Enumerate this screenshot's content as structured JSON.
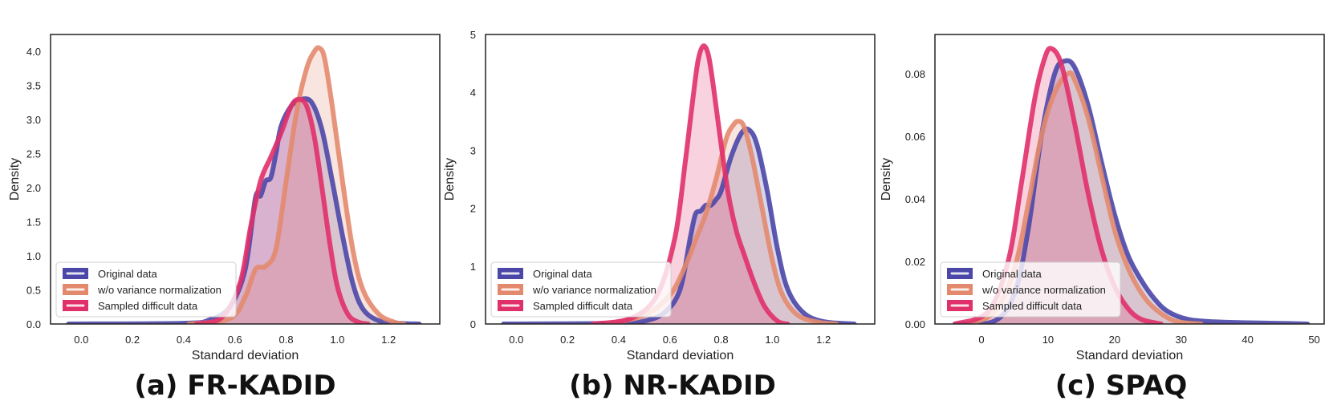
{
  "chart_data": [
    {
      "type": "area",
      "caption": "(a) FR-KADID",
      "xlabel": "Standard deviation",
      "ylabel": "Density",
      "xlim": [
        -0.12,
        1.4
      ],
      "ylim": [
        0,
        4.25
      ],
      "xticks": [
        0.0,
        0.2,
        0.4,
        0.6,
        0.8,
        1.0,
        1.2
      ],
      "xtick_labels": [
        "0.0",
        "0.2",
        "0.4",
        "0.6",
        "0.8",
        "1.0",
        "1.2"
      ],
      "yticks": [
        0.0,
        0.5,
        1.0,
        1.5,
        2.0,
        2.5,
        3.0,
        3.5,
        4.0
      ],
      "ytick_labels": [
        "0.0",
        "0.5",
        "1.0",
        "1.5",
        "2.0",
        "2.5",
        "3.0",
        "3.5",
        "4.0"
      ],
      "grid": false,
      "legend_position": "lower-left",
      "series": [
        {
          "name": "Original data",
          "color": "#4b47a8",
          "x": [
            -0.05,
            0.4,
            0.5,
            0.58,
            0.64,
            0.68,
            0.7,
            0.72,
            0.74,
            0.76,
            0.78,
            0.82,
            0.86,
            0.9,
            0.94,
            0.98,
            1.02,
            1.06,
            1.1,
            1.16,
            1.24,
            1.32
          ],
          "y": [
            0.0,
            0.01,
            0.06,
            0.25,
            0.8,
            1.85,
            1.88,
            2.1,
            2.15,
            2.5,
            2.9,
            3.2,
            3.3,
            3.25,
            2.85,
            2.1,
            1.3,
            0.6,
            0.22,
            0.05,
            0.01,
            0.0
          ]
        },
        {
          "name": "w/o variance normalization",
          "color": "#e38a6e",
          "x": [
            0.42,
            0.58,
            0.64,
            0.68,
            0.72,
            0.76,
            0.8,
            0.84,
            0.88,
            0.91,
            0.93,
            0.95,
            0.98,
            1.02,
            1.06,
            1.1,
            1.16,
            1.22,
            1.26
          ],
          "y": [
            0.0,
            0.08,
            0.4,
            0.8,
            0.85,
            1.1,
            2.1,
            3.1,
            3.75,
            4.0,
            4.05,
            3.9,
            3.2,
            2.1,
            1.1,
            0.5,
            0.15,
            0.03,
            0.0
          ]
        },
        {
          "name": "Sampled difficult data",
          "color": "#e0306a",
          "x": [
            0.45,
            0.55,
            0.62,
            0.66,
            0.7,
            0.74,
            0.78,
            0.82,
            0.85,
            0.88,
            0.91,
            0.94,
            0.97,
            1.0,
            1.04,
            1.08,
            1.12
          ],
          "y": [
            0.0,
            0.1,
            0.6,
            1.4,
            2.1,
            2.45,
            2.8,
            3.2,
            3.3,
            3.2,
            2.75,
            2.0,
            1.2,
            0.55,
            0.15,
            0.03,
            0.0
          ]
        }
      ]
    },
    {
      "type": "area",
      "caption": "(b) NR-KADID",
      "xlabel": "Standard deviation",
      "ylabel": "Density",
      "xlim": [
        -0.12,
        1.4
      ],
      "ylim": [
        0,
        5.0
      ],
      "xticks": [
        0.0,
        0.2,
        0.4,
        0.6,
        0.8,
        1.0,
        1.2
      ],
      "xtick_labels": [
        "0.0",
        "0.2",
        "0.4",
        "0.6",
        "0.8",
        "1.0",
        "1.2"
      ],
      "yticks": [
        0,
        1,
        2,
        3,
        4,
        5
      ],
      "ytick_labels": [
        "0",
        "1",
        "2",
        "3",
        "4",
        "5"
      ],
      "grid": false,
      "legend_position": "lower-left",
      "series": [
        {
          "name": "Original data",
          "color": "#4b47a8",
          "x": [
            -0.05,
            0.4,
            0.5,
            0.58,
            0.64,
            0.68,
            0.7,
            0.72,
            0.74,
            0.76,
            0.78,
            0.8,
            0.84,
            0.88,
            0.91,
            0.94,
            0.98,
            1.02,
            1.06,
            1.12,
            1.2,
            1.32
          ],
          "y": [
            0.0,
            0.01,
            0.05,
            0.2,
            0.6,
            1.5,
            1.9,
            1.95,
            2.05,
            2.05,
            2.15,
            2.3,
            2.9,
            3.3,
            3.35,
            3.1,
            2.3,
            1.3,
            0.6,
            0.2,
            0.04,
            0.0
          ]
        },
        {
          "name": "w/o variance normalization",
          "color": "#e38a6e",
          "x": [
            0.35,
            0.5,
            0.6,
            0.66,
            0.7,
            0.74,
            0.78,
            0.82,
            0.85,
            0.87,
            0.89,
            0.92,
            0.96,
            1.0,
            1.04,
            1.1,
            1.18,
            1.25
          ],
          "y": [
            0.0,
            0.15,
            0.5,
            1.0,
            1.45,
            1.9,
            2.5,
            3.2,
            3.45,
            3.5,
            3.4,
            2.9,
            2.0,
            1.1,
            0.5,
            0.15,
            0.03,
            0.0
          ]
        },
        {
          "name": "Sampled difficult data",
          "color": "#e0306a",
          "x": [
            0.3,
            0.45,
            0.55,
            0.62,
            0.66,
            0.69,
            0.71,
            0.73,
            0.75,
            0.77,
            0.8,
            0.83,
            0.86,
            0.89,
            0.93,
            0.97,
            1.02,
            1.06
          ],
          "y": [
            0.0,
            0.1,
            0.5,
            1.5,
            2.8,
            3.9,
            4.55,
            4.8,
            4.65,
            4.1,
            3.1,
            2.2,
            1.6,
            1.2,
            0.7,
            0.3,
            0.05,
            0.0
          ]
        }
      ]
    },
    {
      "type": "area",
      "caption": "(c) SPAQ",
      "xlabel": "Standard deviation",
      "ylabel": "Density",
      "xlim": [
        -7,
        51.5
      ],
      "ylim": [
        0,
        0.0925
      ],
      "xticks": [
        0,
        10,
        20,
        30,
        40,
        50
      ],
      "xtick_labels": [
        "0",
        "10",
        "20",
        "30",
        "40",
        "50"
      ],
      "yticks": [
        0.0,
        0.02,
        0.04,
        0.06,
        0.08
      ],
      "ytick_labels": [
        "0.00",
        "0.02",
        "0.04",
        "0.06",
        "0.08"
      ],
      "grid": false,
      "legend_position": "lower-left",
      "series": [
        {
          "name": "Original data",
          "color": "#4b47a8",
          "x": [
            -4,
            2,
            5,
            7,
            9,
            11,
            12.5,
            14,
            16,
            18,
            20,
            22,
            24,
            26,
            28,
            31,
            35,
            40,
            45,
            49
          ],
          "y": [
            0.0,
            0.001,
            0.01,
            0.03,
            0.06,
            0.08,
            0.084,
            0.082,
            0.07,
            0.052,
            0.035,
            0.022,
            0.014,
            0.008,
            0.004,
            0.0015,
            0.0007,
            0.0004,
            0.0002,
            0.0
          ]
        },
        {
          "name": "w/o variance normalization",
          "color": "#e38a6e",
          "x": [
            -2,
            2,
            5,
            7,
            9,
            11,
            13,
            14,
            16,
            18,
            20,
            22,
            24,
            26,
            29,
            33
          ],
          "y": [
            0.0,
            0.004,
            0.018,
            0.038,
            0.06,
            0.074,
            0.08,
            0.078,
            0.066,
            0.048,
            0.03,
            0.018,
            0.01,
            0.005,
            0.001,
            0.0
          ]
        },
        {
          "name": "Sampled difficult data",
          "color": "#e0306a",
          "x": [
            -4,
            1,
            4,
            6,
            8,
            9.5,
            10.5,
            12,
            14,
            16,
            18,
            20,
            22,
            24,
            27
          ],
          "y": [
            0.0,
            0.004,
            0.02,
            0.045,
            0.072,
            0.085,
            0.088,
            0.083,
            0.064,
            0.042,
            0.024,
            0.012,
            0.005,
            0.0015,
            0.0
          ]
        }
      ]
    }
  ]
}
